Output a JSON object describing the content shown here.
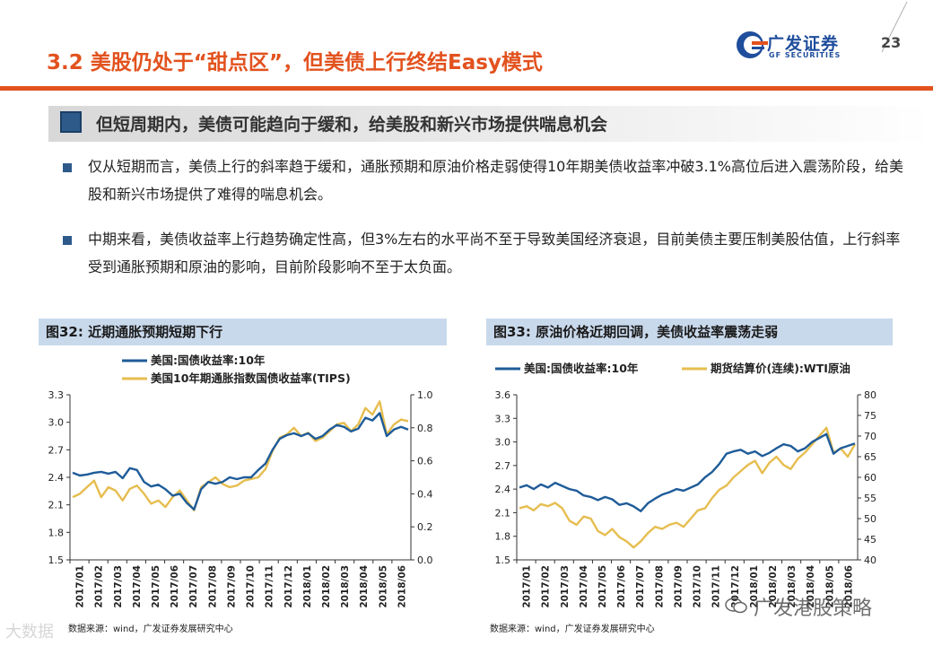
{
  "header": {
    "title": "3.2 美股仍处于“甜点区”，但美债上行终结Easy模式",
    "page_number": "23",
    "logo": {
      "name_cn": "广发证券",
      "name_en": "GF SECURITIES",
      "color": "#1f4e9c",
      "accent": "#e2521e"
    }
  },
  "subheading": "但短周期内，美债可能趋向于缓和，给美股和新兴市场提供喘息机会",
  "bullets": [
    "仅从短期而言，美债上行的斜率趋于缓和，通胀预期和原油价格走弱使得10年期美债收益率冲破3.1%高位后进入震荡阶段，给美股和新兴市场提供了难得的喘息机会。",
    "中期来看，美债收益率上行趋势确定性高，但3%左右的水平尚不至于导致美国经济衰退，目前美债主要压制美股估值，上行斜率受到通胀预期和原油的影响，目前阶段影响不至于太负面。"
  ],
  "figures": [
    {
      "caption": "图32:  近期通胀预期短期下行",
      "source": "数据来源：wind，广发证券发展研究中心"
    },
    {
      "caption": "图33:  原油价格近期回调，美债收益率震荡走弱",
      "source": "数据来源：wind，广发证券发展研究中心"
    }
  ],
  "watermarks": {
    "wechat": "广发港股策略",
    "corner": "大数据"
  },
  "chart_data": [
    {
      "type": "line",
      "x_tick_labels": [
        "2017/01",
        "2017/02",
        "2017/03",
        "2017/04",
        "2017/05",
        "2017/06",
        "2017/07",
        "2017/08",
        "2017/09",
        "2017/10",
        "2017/11",
        "2017/12",
        "2018/01",
        "2018/02",
        "2018/03",
        "2018/04",
        "2018/05",
        "2018/06"
      ],
      "y_left": {
        "ticks": [
          "1.5",
          "1.8",
          "2.1",
          "2.4",
          "2.7",
          "3.0",
          "3.3"
        ],
        "range": [
          1.5,
          3.3
        ]
      },
      "y_right": {
        "ticks": [
          "0.0",
          "0.2",
          "0.4",
          "0.6",
          "0.8",
          "1.0"
        ],
        "range": [
          0.0,
          1.0
        ]
      },
      "series": [
        {
          "name": "美国:国债收益率:10年",
          "axis": "left",
          "color": "#1f5c99",
          "values": [
            2.45,
            2.42,
            2.43,
            2.45,
            2.46,
            2.44,
            2.46,
            2.39,
            2.5,
            2.48,
            2.35,
            2.3,
            2.32,
            2.27,
            2.2,
            2.22,
            2.12,
            2.05,
            2.27,
            2.35,
            2.33,
            2.35,
            2.4,
            2.38,
            2.4,
            2.4,
            2.48,
            2.55,
            2.7,
            2.82,
            2.86,
            2.88,
            2.85,
            2.88,
            2.82,
            2.85,
            2.92,
            2.97,
            2.95,
            2.9,
            2.93,
            3.05,
            3.02,
            3.1,
            2.85,
            2.92,
            2.95,
            2.92
          ]
        },
        {
          "name": "美国10年期通胀指数国债收益率(TIPS)",
          "axis": "right",
          "color": "#e6bd4f",
          "values": [
            0.38,
            0.4,
            0.44,
            0.48,
            0.38,
            0.44,
            0.42,
            0.36,
            0.43,
            0.45,
            0.4,
            0.34,
            0.36,
            0.32,
            0.38,
            0.42,
            0.36,
            0.3,
            0.44,
            0.47,
            0.5,
            0.46,
            0.44,
            0.45,
            0.48,
            0.49,
            0.5,
            0.55,
            0.66,
            0.74,
            0.76,
            0.8,
            0.75,
            0.77,
            0.72,
            0.74,
            0.78,
            0.82,
            0.83,
            0.78,
            0.82,
            0.92,
            0.88,
            0.96,
            0.76,
            0.82,
            0.85,
            0.84
          ]
        }
      ]
    },
    {
      "type": "line",
      "x_tick_labels": [
        "2017/01",
        "2017/02",
        "2017/03",
        "2017/04",
        "2017/05",
        "2017/06",
        "2017/07",
        "2017/08",
        "2017/09",
        "2017/10",
        "2017/11",
        "2017/12",
        "2018/01",
        "2018/02",
        "2018/03",
        "2018/04",
        "2018/05",
        "2018/06"
      ],
      "y_left": {
        "ticks": [
          "1.5",
          "1.8",
          "2.1",
          "2.4",
          "2.7",
          "3.0",
          "3.3",
          "3.6"
        ],
        "range": [
          1.5,
          3.6
        ]
      },
      "y_right": {
        "ticks": [
          "40",
          "45",
          "50",
          "55",
          "60",
          "65",
          "70",
          "75",
          "80"
        ],
        "range": [
          40,
          80
        ]
      },
      "series": [
        {
          "name": "美国:国债收益率:10年",
          "axis": "left",
          "color": "#1f5c99",
          "values": [
            2.42,
            2.45,
            2.4,
            2.46,
            2.42,
            2.48,
            2.44,
            2.4,
            2.38,
            2.32,
            2.3,
            2.26,
            2.3,
            2.27,
            2.2,
            2.22,
            2.18,
            2.12,
            2.22,
            2.28,
            2.33,
            2.36,
            2.4,
            2.38,
            2.42,
            2.46,
            2.55,
            2.62,
            2.72,
            2.85,
            2.88,
            2.9,
            2.85,
            2.88,
            2.82,
            2.86,
            2.92,
            2.97,
            2.95,
            2.88,
            2.92,
            3.0,
            3.05,
            3.1,
            2.85,
            2.92,
            2.95,
            2.98
          ]
        },
        {
          "name": "期货结算价(连续):WTI原油",
          "axis": "right",
          "color": "#e6bd4f",
          "values": [
            52.5,
            53.0,
            52.0,
            53.5,
            53.0,
            53.8,
            52.5,
            49.5,
            48.5,
            50.5,
            50.0,
            47.0,
            46.0,
            47.5,
            45.5,
            44.5,
            43.0,
            44.5,
            46.5,
            48.0,
            47.5,
            48.5,
            49.0,
            48.0,
            50.0,
            52.0,
            52.5,
            55.0,
            57.0,
            58.0,
            60.0,
            61.5,
            63.0,
            64.0,
            61.0,
            63.5,
            65.0,
            63.0,
            62.0,
            64.5,
            66.0,
            68.0,
            70.0,
            72.0,
            66.0,
            67.0,
            65.0,
            68.0
          ]
        }
      ]
    }
  ]
}
